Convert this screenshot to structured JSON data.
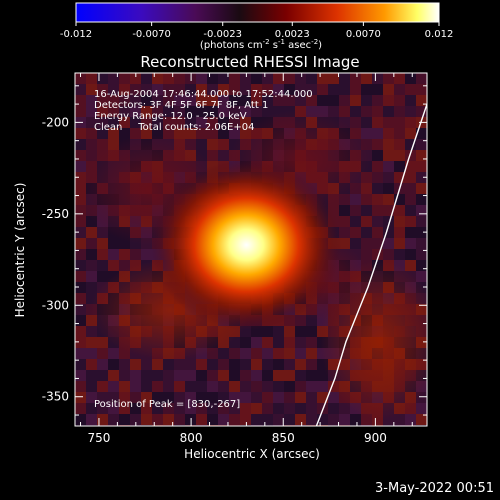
{
  "colorbar": {
    "tick_labels": [
      "-0.012",
      "-0.0070",
      "-0.0023",
      "0.0023",
      "0.0070",
      "0.012"
    ],
    "tick_values": [
      -0.012,
      -0.007,
      -0.0023,
      0.0023,
      0.007,
      0.012
    ],
    "range": [
      -0.012,
      0.012
    ],
    "units_parts": {
      "a": "(photons cm",
      "a_sup": "-2",
      "b": " s",
      "b_sup": "-1",
      "c": " asec",
      "c_sup": "-2",
      "d": ")"
    },
    "colors": [
      "#0000ff",
      "#4b0082",
      "#000000",
      "#8b0000",
      "#ff6600",
      "#ffff66",
      "#ffffff"
    ]
  },
  "plot": {
    "title": "Reconstructed RHESSI Image",
    "info_lines": [
      "16-Aug-2004 17:46:44.000 to 17:52:44.000",
      "Detectors: 3F 4F 5F 6F 7F 8F, Att 1",
      "Energy Range: 12.0 - 25.0 keV",
      "Clean     Total counts: 2.06E+04"
    ],
    "peak_label": "Position of Peak = [830,-267]",
    "x_axis": {
      "label": "Heliocentric X (arcsec)",
      "tick_labels": [
        "750",
        "800",
        "850",
        "900"
      ],
      "tick_values": [
        750,
        800,
        850,
        900
      ],
      "range": [
        737,
        928
      ]
    },
    "y_axis": {
      "label": "Heliocentric Y (arcsec)",
      "tick_labels": [
        "-200",
        "-250",
        "-300",
        "-350"
      ],
      "tick_values": [
        -200,
        -250,
        -300,
        -350
      ],
      "range": [
        -366,
        -173
      ]
    },
    "peak": {
      "x": 830,
      "y": -267
    },
    "limb_points": [
      [
        928,
        -190
      ],
      [
        918,
        -220
      ],
      [
        906,
        -260
      ],
      [
        896,
        -290
      ],
      [
        884,
        -320
      ],
      [
        878,
        -340
      ],
      [
        868,
        -366
      ]
    ]
  },
  "footer": {
    "timestamp": "3-May-2022 00:51"
  }
}
